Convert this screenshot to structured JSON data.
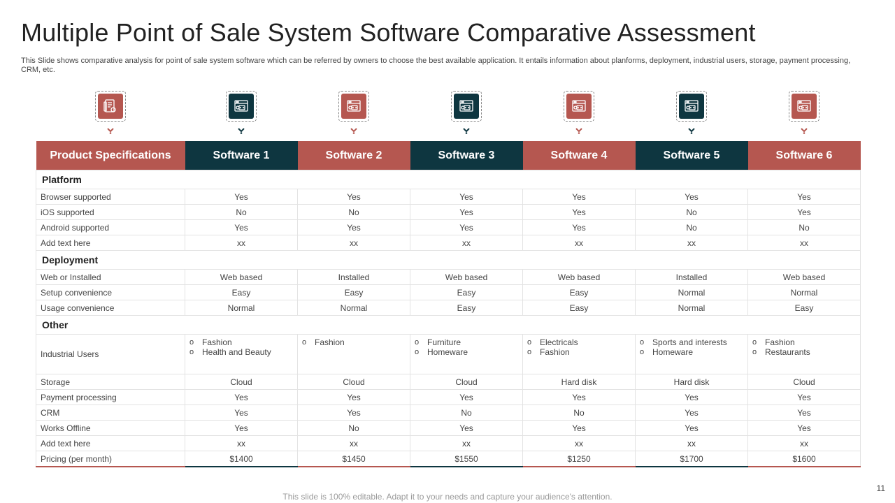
{
  "title": "Multiple Point of Sale System Software Comparative Assessment",
  "subtitle": "This Slide shows comparative analysis for point of sale system software which can be referred by owners to choose the best available application. It entails information about planforms, deployment, industrial users, storage, payment processing, CRM, etc.",
  "colors": {
    "red": "#b55750",
    "dark": "#0e3640"
  },
  "icons": [
    {
      "name": "document-icon",
      "color": "red"
    },
    {
      "name": "browser-code-icon",
      "color": "dark"
    },
    {
      "name": "browser-code-icon",
      "color": "red"
    },
    {
      "name": "browser-code-icon",
      "color": "dark"
    },
    {
      "name": "browser-code-icon",
      "color": "red"
    },
    {
      "name": "browser-code-icon",
      "color": "dark"
    },
    {
      "name": "browser-code-icon",
      "color": "red"
    }
  ],
  "table": {
    "headers": [
      "Product Specifications",
      "Software 1",
      "Software 2",
      "Software 3",
      "Software 4",
      "Software 5",
      "Software 6"
    ],
    "sections": [
      {
        "title": "Platform",
        "rows": [
          {
            "label": "Browser supported",
            "values": [
              "Yes",
              "Yes",
              "Yes",
              "Yes",
              "Yes",
              "Yes"
            ]
          },
          {
            "label": "iOS supported",
            "values": [
              "No",
              "No",
              "Yes",
              "Yes",
              "No",
              "Yes"
            ]
          },
          {
            "label": "Android supported",
            "values": [
              "Yes",
              "Yes",
              "Yes",
              "Yes",
              "No",
              "No"
            ]
          },
          {
            "label": "Add text here",
            "values": [
              "xx",
              "xx",
              "xx",
              "xx",
              "xx",
              "xx"
            ]
          }
        ]
      },
      {
        "title": "Deployment",
        "rows": [
          {
            "label": "Web or Installed",
            "values": [
              "Web based",
              "Installed",
              "Web based",
              "Web based",
              "Installed",
              "Web based"
            ]
          },
          {
            "label": "Setup convenience",
            "values": [
              "Easy",
              "Easy",
              "Easy",
              "Easy",
              "Normal",
              "Normal"
            ]
          },
          {
            "label": "Usage convenience",
            "values": [
              "Normal",
              "Normal",
              "Easy",
              "Easy",
              "Normal",
              "Easy"
            ]
          }
        ]
      },
      {
        "title": "Other",
        "rows": [
          {
            "label": "Industrial Users",
            "multi": true,
            "bullet": "o",
            "values": [
              [
                "Fashion",
                "Health and Beauty"
              ],
              [
                "Fashion"
              ],
              [
                "Furniture",
                "Homeware"
              ],
              [
                "Electricals",
                "Fashion"
              ],
              [
                "Sports and interests",
                "Homeware"
              ],
              [
                "Fashion",
                "Restaurants"
              ]
            ]
          },
          {
            "label": "Storage",
            "values": [
              "Cloud",
              "Cloud",
              "Cloud",
              "Hard disk",
              "Hard disk",
              "Cloud"
            ]
          },
          {
            "label": "Payment processing",
            "values": [
              "Yes",
              "Yes",
              "Yes",
              "Yes",
              "Yes",
              "Yes"
            ]
          },
          {
            "label": "CRM",
            "values": [
              "Yes",
              "Yes",
              "No",
              "No",
              "Yes",
              "Yes"
            ]
          },
          {
            "label": "Works Offline",
            "values": [
              "Yes",
              "No",
              "Yes",
              "Yes",
              "Yes",
              "Yes"
            ]
          },
          {
            "label": "Add text here",
            "values": [
              "xx",
              "xx",
              "xx",
              "xx",
              "xx",
              "xx"
            ]
          },
          {
            "label": "Pricing (per month)",
            "values": [
              "$1400",
              "$1450",
              "$1550",
              "$1250",
              "$1700",
              "$1600"
            ]
          }
        ]
      }
    ]
  },
  "page_number": "11",
  "footer": "This slide is 100% editable. Adapt it to your needs and capture your audience's attention."
}
